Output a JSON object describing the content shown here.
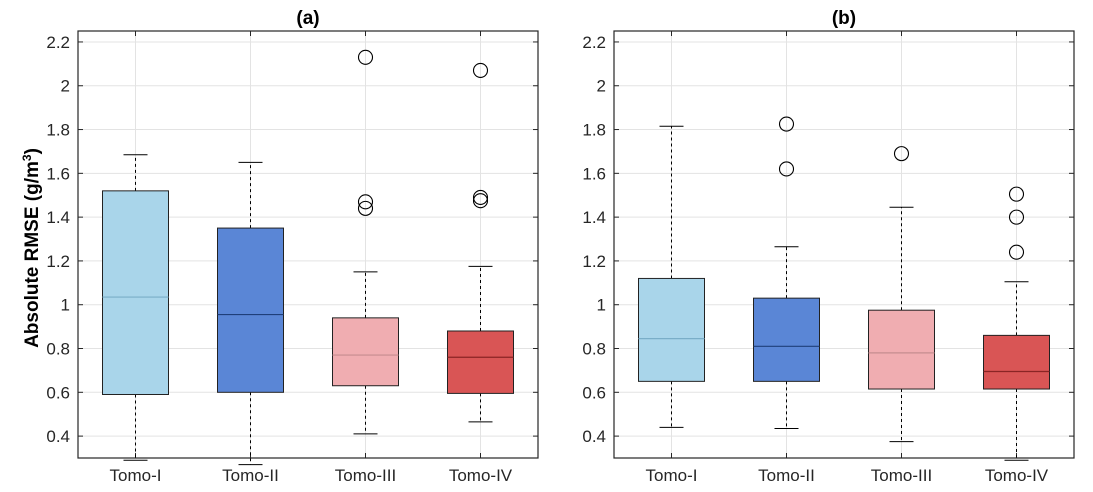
{
  "chart_data": [
    {
      "type": "box",
      "title": "(a)",
      "ylabel": "Absolute RMSE (g/m",
      "ylabel_sup": "3",
      "ylabel_end": ")",
      "categories": [
        "Tomo-I",
        "Tomo-II",
        "Tomo-III",
        "Tomo-IV"
      ],
      "ylim": [
        0.3,
        2.25
      ],
      "yticks": [
        0.4,
        0.6,
        0.8,
        1,
        1.2,
        1.4,
        1.6,
        1.8,
        2,
        2.2
      ],
      "grid": true,
      "boxes": [
        {
          "name": "Tomo-I",
          "whisker_low": 0.29,
          "q1": 0.59,
          "median": 1.035,
          "q3": 1.52,
          "whisker_high": 1.685,
          "outliers": [],
          "color": "#a9d5ea",
          "median_color": "#7aaec8"
        },
        {
          "name": "Tomo-II",
          "whisker_low": 0.27,
          "q1": 0.6,
          "median": 0.955,
          "q3": 1.35,
          "whisker_high": 1.65,
          "outliers": [],
          "color": "#5a86d6",
          "median_color": "#1f3f7a"
        },
        {
          "name": "Tomo-III",
          "whisker_low": 0.41,
          "q1": 0.63,
          "median": 0.77,
          "q3": 0.94,
          "whisker_high": 1.15,
          "outliers": [
            1.44,
            1.47,
            2.13
          ],
          "color": "#f0adb1",
          "median_color": "#c58d90"
        },
        {
          "name": "Tomo-IV",
          "whisker_low": 0.465,
          "q1": 0.595,
          "median": 0.76,
          "q3": 0.88,
          "whisker_high": 1.175,
          "outliers": [
            1.475,
            1.49,
            2.07
          ],
          "color": "#d95555",
          "median_color": "#8a2525"
        }
      ]
    },
    {
      "type": "box",
      "title": "(b)",
      "categories": [
        "Tomo-I",
        "Tomo-II",
        "Tomo-III",
        "Tomo-IV"
      ],
      "ylim": [
        0.3,
        2.25
      ],
      "yticks": [
        0.4,
        0.6,
        0.8,
        1,
        1.2,
        1.4,
        1.6,
        1.8,
        2,
        2.2
      ],
      "grid": true,
      "boxes": [
        {
          "name": "Tomo-I",
          "whisker_low": 0.44,
          "q1": 0.65,
          "median": 0.845,
          "q3": 1.12,
          "whisker_high": 1.815,
          "outliers": [],
          "color": "#a9d5ea",
          "median_color": "#7aaec8"
        },
        {
          "name": "Tomo-II",
          "whisker_low": 0.435,
          "q1": 0.65,
          "median": 0.81,
          "q3": 1.03,
          "whisker_high": 1.265,
          "outliers": [
            1.62,
            1.825
          ],
          "color": "#5a86d6",
          "median_color": "#1f3f7a"
        },
        {
          "name": "Tomo-III",
          "whisker_low": 0.375,
          "q1": 0.615,
          "median": 0.78,
          "q3": 0.975,
          "whisker_high": 1.445,
          "outliers": [
            1.69
          ],
          "color": "#f0adb1",
          "median_color": "#c58d90"
        },
        {
          "name": "Tomo-IV",
          "whisker_low": 0.29,
          "q1": 0.615,
          "median": 0.695,
          "q3": 0.86,
          "whisker_high": 1.105,
          "outliers": [
            1.24,
            1.4,
            1.505
          ],
          "color": "#d95555",
          "median_color": "#8a2525"
        }
      ]
    }
  ]
}
